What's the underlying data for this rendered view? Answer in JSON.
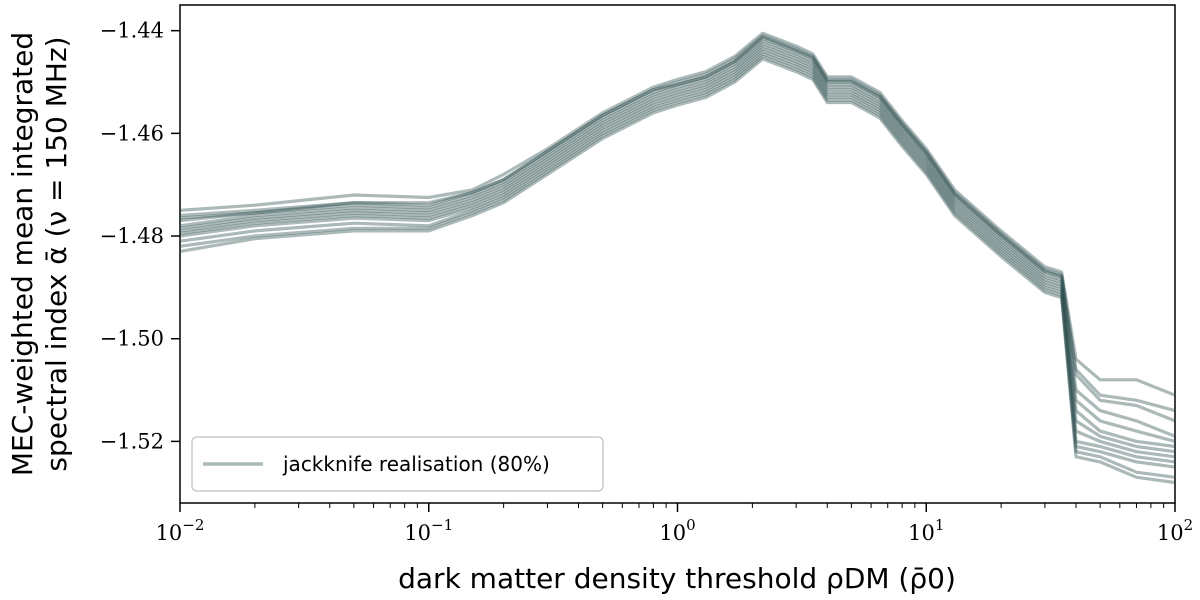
{
  "chart_data": {
    "type": "line",
    "xscale": "log",
    "xlim": [
      0.01,
      100
    ],
    "ylim": [
      -1.532,
      -1.435
    ],
    "xticks": [
      {
        "value": 0.01,
        "base": "10",
        "exp": "−2"
      },
      {
        "value": 0.1,
        "base": "10",
        "exp": "−1"
      },
      {
        "value": 1,
        "base": "10",
        "exp": "0"
      },
      {
        "value": 10,
        "base": "10",
        "exp": "1"
      },
      {
        "value": 100,
        "base": "10",
        "exp": "2"
      }
    ],
    "yticks": [
      {
        "value": -1.44,
        "label": "−1.44"
      },
      {
        "value": -1.46,
        "label": "−1.46"
      },
      {
        "value": -1.48,
        "label": "−1.48"
      },
      {
        "value": -1.5,
        "label": "−1.50"
      },
      {
        "value": -1.52,
        "label": "−1.52"
      }
    ],
    "xlabel": "dark matter density threshold ρDM  (ρ̄0)",
    "ylabel_line1": "MEC-weighted mean integrated",
    "ylabel_line2": "spectral index ᾱ  (ν = 150 MHz)",
    "legend": {
      "label": "jackknife realisation (80%)",
      "position": "lower-left"
    },
    "line_color": "#2f4f4f",
    "x": [
      0.01,
      0.02,
      0.05,
      0.1,
      0.15,
      0.2,
      0.3,
      0.5,
      0.8,
      1.0,
      1.3,
      1.7,
      2.2,
      3.0,
      3.5,
      4.0,
      5.0,
      6.5,
      8.0,
      10,
      13,
      20,
      30,
      35,
      40,
      50,
      70,
      100
    ],
    "series": [
      {
        "values": [
          -1.475,
          -1.474,
          -1.472,
          -1.4725,
          -1.471,
          -1.468,
          -1.463,
          -1.456,
          -1.451,
          -1.4495,
          -1.448,
          -1.445,
          -1.4405,
          -1.443,
          -1.4445,
          -1.449,
          -1.449,
          -1.452,
          -1.4575,
          -1.463,
          -1.471,
          -1.479,
          -1.486,
          -1.487,
          -1.504,
          -1.508,
          -1.508,
          -1.511
        ]
      },
      {
        "values": [
          -1.476,
          -1.475,
          -1.4735,
          -1.4735,
          -1.4715,
          -1.469,
          -1.4635,
          -1.4565,
          -1.4515,
          -1.45,
          -1.4485,
          -1.4455,
          -1.441,
          -1.4435,
          -1.445,
          -1.4495,
          -1.4495,
          -1.4525,
          -1.458,
          -1.4635,
          -1.4715,
          -1.4795,
          -1.4865,
          -1.4875,
          -1.507,
          -1.512,
          -1.513,
          -1.516
        ]
      },
      {
        "values": [
          -1.477,
          -1.4755,
          -1.474,
          -1.4745,
          -1.472,
          -1.4695,
          -1.464,
          -1.457,
          -1.452,
          -1.4505,
          -1.449,
          -1.446,
          -1.4415,
          -1.444,
          -1.4455,
          -1.45,
          -1.45,
          -1.453,
          -1.4585,
          -1.464,
          -1.472,
          -1.48,
          -1.487,
          -1.488,
          -1.51,
          -1.514,
          -1.516,
          -1.519
        ]
      },
      {
        "values": [
          -1.478,
          -1.476,
          -1.4745,
          -1.475,
          -1.4725,
          -1.47,
          -1.4645,
          -1.4575,
          -1.4525,
          -1.451,
          -1.4495,
          -1.4465,
          -1.442,
          -1.4445,
          -1.446,
          -1.4505,
          -1.4505,
          -1.4535,
          -1.459,
          -1.4645,
          -1.4725,
          -1.4805,
          -1.4875,
          -1.4885,
          -1.512,
          -1.516,
          -1.518,
          -1.52
        ]
      },
      {
        "values": [
          -1.4785,
          -1.4765,
          -1.475,
          -1.4755,
          -1.473,
          -1.4705,
          -1.465,
          -1.458,
          -1.453,
          -1.4515,
          -1.45,
          -1.447,
          -1.4425,
          -1.445,
          -1.4465,
          -1.451,
          -1.451,
          -1.454,
          -1.4595,
          -1.465,
          -1.473,
          -1.481,
          -1.488,
          -1.489,
          -1.514,
          -1.518,
          -1.52,
          -1.521
        ]
      },
      {
        "values": [
          -1.479,
          -1.477,
          -1.4755,
          -1.476,
          -1.4735,
          -1.471,
          -1.4655,
          -1.4585,
          -1.4535,
          -1.452,
          -1.4505,
          -1.4475,
          -1.443,
          -1.4455,
          -1.447,
          -1.4515,
          -1.4515,
          -1.4545,
          -1.46,
          -1.4655,
          -1.4735,
          -1.4815,
          -1.4885,
          -1.4895,
          -1.516,
          -1.519,
          -1.521,
          -1.522
        ]
      },
      {
        "values": [
          -1.4795,
          -1.4775,
          -1.476,
          -1.4765,
          -1.474,
          -1.4715,
          -1.466,
          -1.459,
          -1.454,
          -1.4525,
          -1.451,
          -1.448,
          -1.4435,
          -1.446,
          -1.4475,
          -1.452,
          -1.452,
          -1.455,
          -1.4605,
          -1.466,
          -1.474,
          -1.482,
          -1.489,
          -1.49,
          -1.518,
          -1.52,
          -1.522,
          -1.523
        ]
      },
      {
        "values": [
          -1.48,
          -1.478,
          -1.4765,
          -1.477,
          -1.4745,
          -1.472,
          -1.4665,
          -1.4595,
          -1.4545,
          -1.453,
          -1.4515,
          -1.4485,
          -1.444,
          -1.4465,
          -1.448,
          -1.4525,
          -1.4525,
          -1.4555,
          -1.461,
          -1.4665,
          -1.4745,
          -1.4825,
          -1.4895,
          -1.4905,
          -1.52,
          -1.521,
          -1.523,
          -1.524
        ]
      },
      {
        "values": [
          -1.481,
          -1.479,
          -1.4775,
          -1.478,
          -1.475,
          -1.4725,
          -1.467,
          -1.46,
          -1.455,
          -1.4535,
          -1.452,
          -1.449,
          -1.4445,
          -1.447,
          -1.4485,
          -1.453,
          -1.453,
          -1.456,
          -1.4615,
          -1.467,
          -1.475,
          -1.483,
          -1.49,
          -1.491,
          -1.521,
          -1.522,
          -1.524,
          -1.525
        ]
      },
      {
        "values": [
          -1.482,
          -1.48,
          -1.4785,
          -1.4785,
          -1.4755,
          -1.473,
          -1.4675,
          -1.4605,
          -1.4555,
          -1.454,
          -1.4525,
          -1.4495,
          -1.445,
          -1.4475,
          -1.449,
          -1.4535,
          -1.4535,
          -1.4565,
          -1.462,
          -1.4675,
          -1.4755,
          -1.4835,
          -1.4905,
          -1.4915,
          -1.522,
          -1.523,
          -1.526,
          -1.527
        ]
      },
      {
        "values": [
          -1.483,
          -1.4805,
          -1.479,
          -1.479,
          -1.476,
          -1.4735,
          -1.468,
          -1.461,
          -1.456,
          -1.4545,
          -1.453,
          -1.45,
          -1.4455,
          -1.448,
          -1.4495,
          -1.454,
          -1.454,
          -1.457,
          -1.4625,
          -1.468,
          -1.476,
          -1.484,
          -1.491,
          -1.492,
          -1.523,
          -1.524,
          -1.527,
          -1.528
        ]
      },
      {
        "values": [
          -1.4765,
          -1.4755,
          -1.4735,
          -1.474,
          -1.4715,
          -1.469,
          -1.4635,
          -1.4565,
          -1.4515,
          -1.4505,
          -1.449,
          -1.446,
          -1.4412,
          -1.4438,
          -1.4452,
          -1.4498,
          -1.4498,
          -1.4528,
          -1.4583,
          -1.4638,
          -1.4718,
          -1.4798,
          -1.4868,
          -1.4878,
          -1.506,
          -1.511,
          -1.512,
          -1.514
        ]
      }
    ]
  }
}
